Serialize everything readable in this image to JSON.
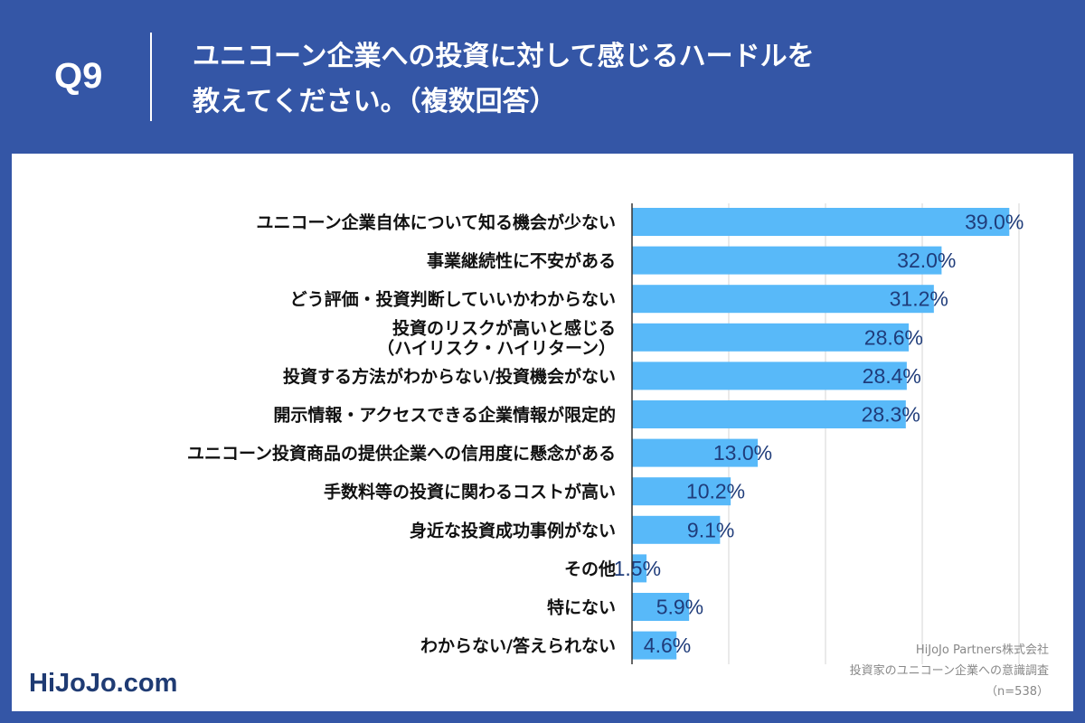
{
  "header": {
    "q_number": "Q9",
    "title_line1": "ユニコーン企業への投資に対して感じるハードルを",
    "title_line2": "教えてください。（複数回答）"
  },
  "branding": {
    "logo": "HiJoJo.com"
  },
  "source": {
    "company": "HiJoJo Partners株式会社",
    "survey": "投資家のユニコーン企業への意識調査",
    "sample": "（n=538）"
  },
  "colors": {
    "background": "#3456a6",
    "bar": "#58b9f9",
    "value_text": "#1f3c7a",
    "grid": "#d5d5d5"
  },
  "chart_data": {
    "type": "bar",
    "orientation": "horizontal",
    "title": "ユニコーン企業への投資に対して感じるハードルを教えてください。（複数回答）",
    "categories": [
      [
        "ユニコーン企業自体について知る機会が少ない"
      ],
      [
        "事業継続性に不安がある"
      ],
      [
        "どう評価・投資判断していいかわからない"
      ],
      [
        "投資のリスクが高いと感じる",
        "（ハイリスク・ハイリターン）"
      ],
      [
        "投資する方法がわからない/投資機会がない"
      ],
      [
        "開示情報・アクセスできる企業情報が限定的"
      ],
      [
        "ユニコーン投資商品の提供企業への信用度に懸念がある"
      ],
      [
        "手数料等の投資に関わるコストが高い"
      ],
      [
        "身近な投資成功事例がない"
      ],
      [
        "その他"
      ],
      [
        "特にない"
      ],
      [
        "わからない/答えられない"
      ]
    ],
    "values": [
      39.0,
      32.0,
      31.2,
      28.6,
      28.4,
      28.3,
      13.0,
      10.2,
      9.1,
      1.5,
      5.9,
      4.6
    ],
    "value_labels": [
      "39.0%",
      "32.0%",
      "31.2%",
      "28.6%",
      "28.4%",
      "28.3%",
      "13.0%",
      "10.2%",
      "9.1%",
      "1.5%",
      "5.9%",
      "4.6%"
    ],
    "unit": "%",
    "xlim": [
      0,
      50
    ],
    "grid_step": 10,
    "xlabel": "",
    "ylabel": ""
  }
}
